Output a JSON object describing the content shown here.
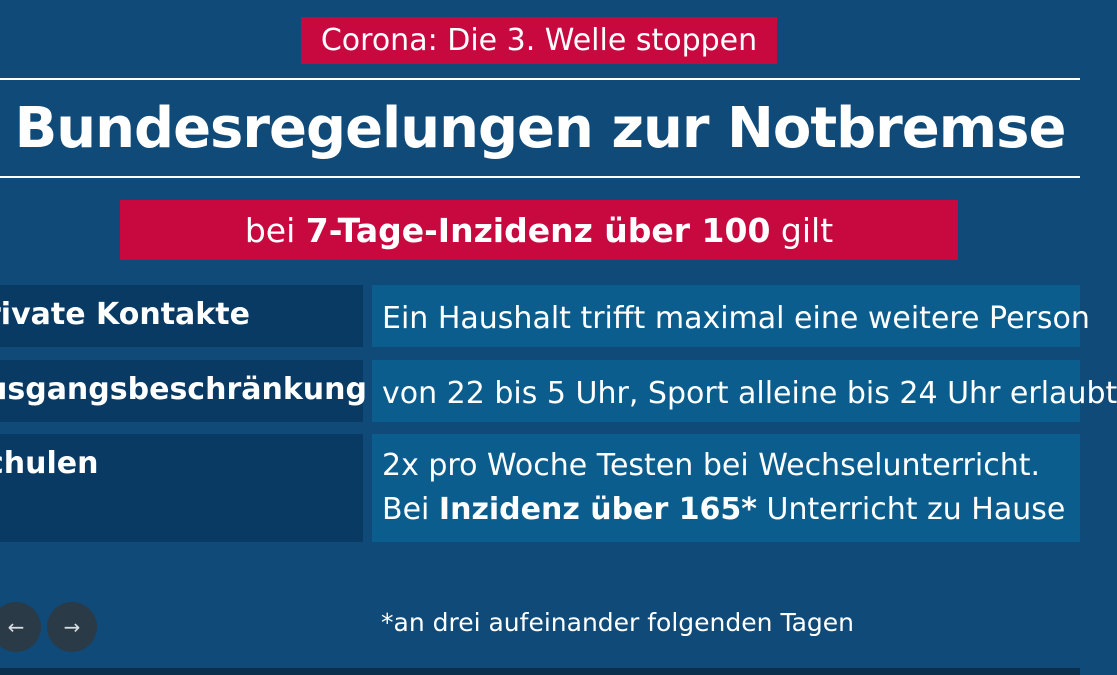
{
  "kicker": "Corona: Die 3. Welle stoppen",
  "title": "Bundesregelungen zur Notbremse",
  "subhead": {
    "prefix": "bei ",
    "highlight": "7-Tage-Inzidenz über 100",
    "suffix": " gilt"
  },
  "rows": [
    {
      "label": "rivate Kontakte",
      "lines": [
        {
          "text": "Ein Haushalt trifft maximal eine weitere Person"
        }
      ]
    },
    {
      "label": "usgangsbeschränkung",
      "lines": [
        {
          "text": "von 22 bis 5 Uhr, Sport alleine bis 24 Uhr erlaubt"
        }
      ]
    },
    {
      "label": "chulen",
      "lines": [
        {
          "text": "2x pro Woche Testen bei Wechselunterricht."
        },
        {
          "prefix": "Bei ",
          "bold": "Inzidenz über 165*",
          "suffix": " Unterricht zu Hause"
        }
      ]
    }
  ],
  "footnote": "*an drei aufeinander folgenden Tagen",
  "nav": {
    "prev_icon": "arrow-left-icon",
    "next_icon": "arrow-right-icon",
    "prev_glyph": "←",
    "next_glyph": "→"
  },
  "colors": {
    "background": "#0f4a78",
    "accent_red": "#c8093f",
    "label_cell": "#083a63",
    "value_cell": "#0b5d8e"
  }
}
